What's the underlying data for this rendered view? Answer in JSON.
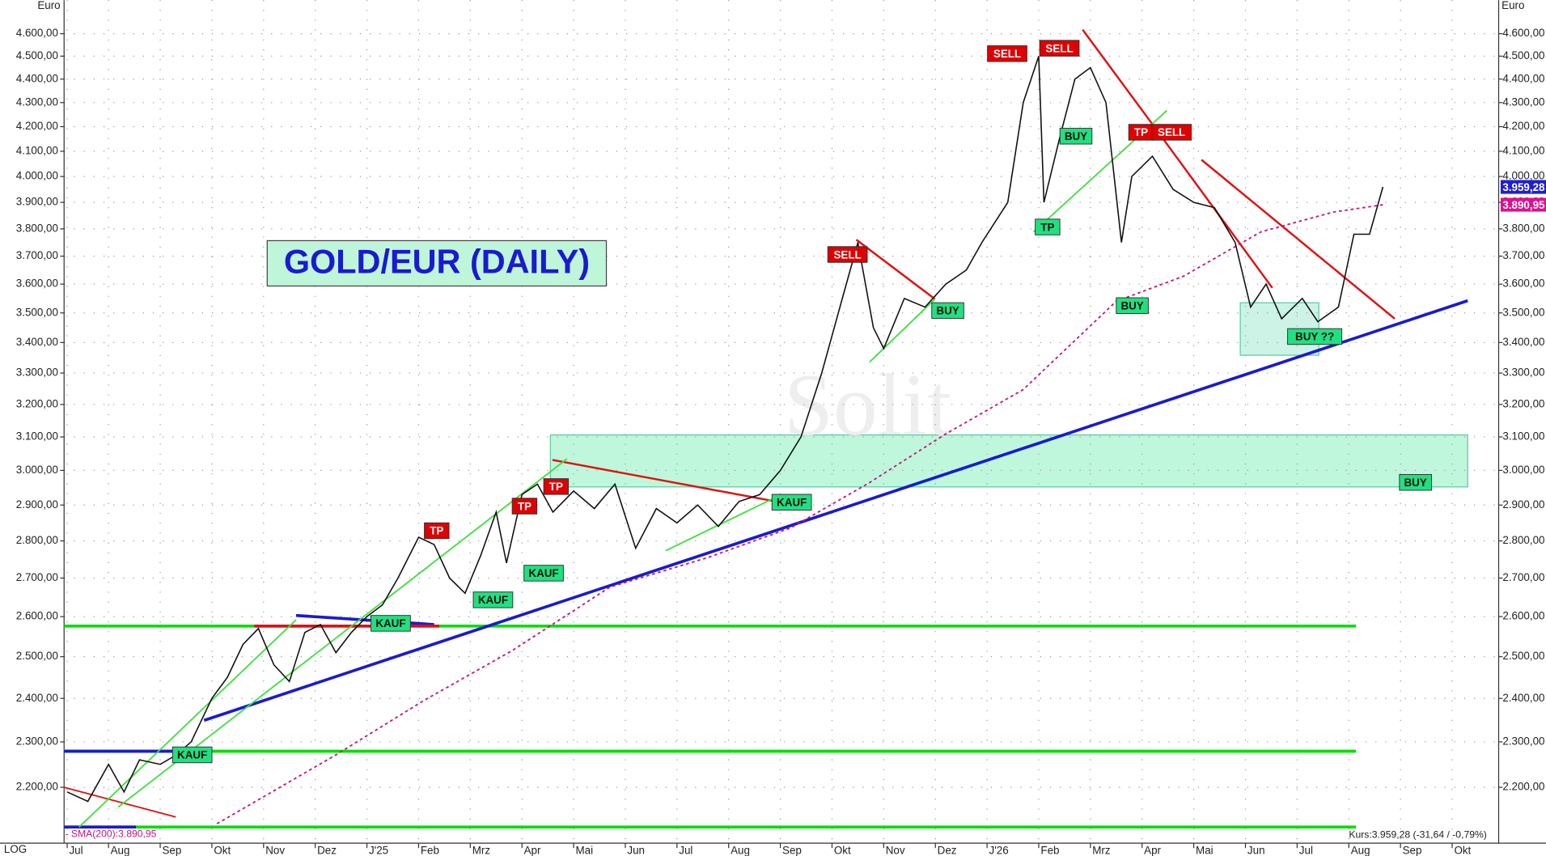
{
  "chart_data": {
    "type": "line",
    "title": "GOLD/EUR (DAILY)",
    "y_unit": "Euro",
    "scale_label": "LOG",
    "watermark": "Solit",
    "log_scale": true,
    "grid": true,
    "sma_legend": "- SMA(200):3.890,95",
    "status": "Kurs:3.959,28 (-31,64 / -0,79%)",
    "last_price": {
      "value": 3959.28,
      "label": "3.959,28",
      "color": "#1f1fd0"
    },
    "sma_last": {
      "value": 3890.95,
      "label": "3.890,95",
      "color": "#e0108c"
    },
    "xlim": [
      0.14,
      27.9
    ],
    "ylim": [
      2083,
      4754
    ],
    "xticks": [
      {
        "value": 0.2,
        "label": "Jul"
      },
      {
        "value": 1,
        "label": "Aug"
      },
      {
        "value": 2,
        "label": "Sep"
      },
      {
        "value": 3,
        "label": "Okt"
      },
      {
        "value": 4,
        "label": "Nov"
      },
      {
        "value": 5,
        "label": "Dez"
      },
      {
        "value": 6,
        "label": "J'25"
      },
      {
        "value": 7,
        "label": "Feb"
      },
      {
        "value": 8,
        "label": "Mrz"
      },
      {
        "value": 9,
        "label": "Apr"
      },
      {
        "value": 10,
        "label": "Mai"
      },
      {
        "value": 11,
        "label": "Jun"
      },
      {
        "value": 12,
        "label": "Jul"
      },
      {
        "value": 13,
        "label": "Aug"
      },
      {
        "value": 14,
        "label": "Sep"
      },
      {
        "value": 15,
        "label": "Okt"
      },
      {
        "value": 16,
        "label": "Nov"
      },
      {
        "value": 17,
        "label": "Dez"
      },
      {
        "value": 18,
        "label": "J'26"
      },
      {
        "value": 19,
        "label": "Feb"
      },
      {
        "value": 20,
        "label": "Mrz"
      },
      {
        "value": 21,
        "label": "Apr"
      },
      {
        "value": 22,
        "label": "Mai"
      },
      {
        "value": 23,
        "label": "Jun"
      },
      {
        "value": 24,
        "label": "Jul"
      },
      {
        "value": 25,
        "label": "Aug"
      },
      {
        "value": 26,
        "label": "Sep"
      },
      {
        "value": 27,
        "label": "Okt"
      }
    ],
    "yticks": [
      {
        "value": 2200,
        "label": "2.200,00"
      },
      {
        "value": 2300,
        "label": "2.300,00"
      },
      {
        "value": 2400,
        "label": "2.400,00"
      },
      {
        "value": 2500,
        "label": "2.500,00"
      },
      {
        "value": 2600,
        "label": "2.600,00"
      },
      {
        "value": 2700,
        "label": "2.700,00"
      },
      {
        "value": 2800,
        "label": "2.800,00"
      },
      {
        "value": 2900,
        "label": "2.900,00"
      },
      {
        "value": 3000,
        "label": "3.000,00"
      },
      {
        "value": 3100,
        "label": "3.100,00"
      },
      {
        "value": 3200,
        "label": "3.200,00"
      },
      {
        "value": 3300,
        "label": "3.300,00"
      },
      {
        "value": 3400,
        "label": "3.400,00"
      },
      {
        "value": 3500,
        "label": "3.500,00"
      },
      {
        "value": 3600,
        "label": "3.600,00"
      },
      {
        "value": 3700,
        "label": "3.700,00"
      },
      {
        "value": 3800,
        "label": "3.800,00"
      },
      {
        "value": 3900,
        "label": "3.900,00"
      },
      {
        "value": 4000,
        "label": "4.000,00"
      },
      {
        "value": 4100,
        "label": "4.100,00"
      },
      {
        "value": 4200,
        "label": "4.200,00"
      },
      {
        "value": 4300,
        "label": "4.300,00"
      },
      {
        "value": 4400,
        "label": "4.400,00"
      },
      {
        "value": 4500,
        "label": "4.500,00"
      },
      {
        "value": 4600,
        "label": "4.600,00"
      }
    ],
    "price": {
      "color": "#111111",
      "x": [
        0.2,
        0.6,
        1.0,
        1.3,
        1.6,
        2.0,
        2.3,
        2.6,
        3.0,
        3.3,
        3.6,
        3.9,
        4.2,
        4.5,
        4.8,
        5.1,
        5.4,
        5.7,
        6.0,
        6.3,
        6.6,
        7.0,
        7.3,
        7.6,
        7.9,
        8.2,
        8.5,
        8.7,
        9.0,
        9.3,
        9.6,
        10.0,
        10.4,
        10.8,
        11.2,
        11.6,
        12.0,
        12.4,
        12.8,
        13.2,
        13.6,
        14.0,
        14.4,
        14.8,
        15.2,
        15.5,
        15.8,
        16.0,
        16.4,
        16.8,
        17.2,
        17.6,
        17.9,
        18.4,
        18.7,
        19.0,
        19.1,
        19.4,
        19.7,
        20.0,
        20.3,
        20.6,
        20.8,
        21.2,
        21.6,
        22.0,
        22.4,
        22.8,
        23.1,
        23.4,
        23.7,
        24.1,
        24.4,
        24.8,
        25.1,
        25.4,
        25.66
      ],
      "values": [
        2190,
        2170,
        2250,
        2190,
        2260,
        2250,
        2270,
        2300,
        2400,
        2450,
        2530,
        2570,
        2480,
        2440,
        2560,
        2580,
        2510,
        2560,
        2600,
        2630,
        2700,
        2810,
        2790,
        2700,
        2660,
        2760,
        2880,
        2740,
        2930,
        2960,
        2880,
        2940,
        2890,
        2960,
        2780,
        2890,
        2850,
        2900,
        2840,
        2910,
        2930,
        3000,
        3100,
        3300,
        3550,
        3750,
        3450,
        3380,
        3550,
        3520,
        3600,
        3650,
        3750,
        3900,
        4300,
        4500,
        3900,
        4150,
        4400,
        4450,
        4300,
        3750,
        4000,
        4080,
        3950,
        3900,
        3880,
        3750,
        3520,
        3600,
        3480,
        3550,
        3470,
        3520,
        3780,
        3780,
        3959.28
      ]
    },
    "sma": {
      "color": "#c0187c",
      "x": [
        3.1,
        5.4,
        7.1,
        8.8,
        10.7,
        12.6,
        14.2,
        15.7,
        17.2,
        18.7,
        20.5,
        21.8,
        23.3,
        24.7,
        25.66
      ],
      "values": [
        2123,
        2271,
        2395,
        2514,
        2676,
        2755,
        2836,
        2962,
        3109,
        3247,
        3540,
        3628,
        3789,
        3863,
        3890.95
      ]
    },
    "zones": [
      {
        "x": [
          9.55,
          27.3
        ],
        "y": [
          2952,
          3106
        ],
        "color": "#bff7dc"
      },
      {
        "x": [
          22.9,
          24.42
        ],
        "y": [
          3358,
          3535
        ],
        "color": "#cdf3e6"
      }
    ],
    "trendlines": [
      {
        "color": "#00e000",
        "width": 3,
        "x": [
          0.14,
          25.14
        ],
        "y": [
          2576,
          2576
        ]
      },
      {
        "color": "#00e000",
        "width": 3,
        "x": [
          0.14,
          25.14
        ],
        "y": [
          2279,
          2279
        ]
      },
      {
        "color": "#00e000",
        "width": 3,
        "x": [
          0.14,
          25.14
        ],
        "y": [
          2116,
          2116
        ]
      },
      {
        "color": "#1a1ad0",
        "width": 3,
        "x": [
          2.85,
          27.3
        ],
        "y": [
          2349,
          3542
        ]
      },
      {
        "color": "#1a1ad0",
        "width": 3,
        "x": [
          0.14,
          2.3
        ],
        "y": [
          2279,
          2279
        ]
      },
      {
        "color": "#1a1ad0",
        "width": 3,
        "x": [
          4.63,
          7.3
        ],
        "y": [
          2603,
          2580
        ]
      },
      {
        "color": "#1a1ad0",
        "width": 3,
        "x": [
          0.14,
          1.53
        ],
        "y": [
          2116,
          2116
        ]
      },
      {
        "color": "#e01010",
        "width": 3,
        "x": [
          3.82,
          7.4
        ],
        "y": [
          2576,
          2576
        ]
      },
      {
        "color": "#e01010",
        "width": 1.5,
        "x": [
          0.14,
          2.3
        ],
        "y": [
          2200,
          2137
        ]
      },
      {
        "color": "#e01010",
        "width": 2,
        "x": [
          9.59,
          13.88
        ],
        "y": [
          3031,
          2911
        ]
      },
      {
        "color": "#e01010",
        "width": 2,
        "x": [
          15.47,
          16.99
        ],
        "y": [
          3760,
          3548
        ]
      },
      {
        "color": "#e01010",
        "width": 2,
        "x": [
          19.85,
          21.23
        ],
        "y": [
          4618,
          4201
        ]
      },
      {
        "color": "#e01010",
        "width": 2,
        "x": [
          21.23,
          23.52
        ],
        "y": [
          4201,
          3587
        ]
      },
      {
        "color": "#e01010",
        "width": 2,
        "x": [
          22.15,
          25.89
        ],
        "y": [
          4066,
          3480
        ]
      },
      {
        "color": "#40e040",
        "width": 1.5,
        "x": [
          0.43,
          4.63
        ],
        "y": [
          2116,
          2592
        ]
      },
      {
        "color": "#40e040",
        "width": 1.5,
        "x": [
          1.19,
          9.87
        ],
        "y": [
          2158,
          3034
        ]
      },
      {
        "color": "#40e040",
        "width": 1.5,
        "x": [
          11.78,
          13.88
        ],
        "y": [
          2773,
          2920
        ]
      },
      {
        "color": "#40e040",
        "width": 1.5,
        "x": [
          15.73,
          16.99
        ],
        "y": [
          3336,
          3548
        ]
      },
      {
        "color": "#40e040",
        "width": 1.5,
        "x": [
          18.9,
          21.48
        ],
        "y": [
          3789,
          4267
        ]
      }
    ],
    "signals": [
      {
        "text": "SELL",
        "x": 15.3,
        "y": 3706,
        "color": "#e00000"
      },
      {
        "text": "SELL",
        "x": 18.39,
        "y": 4511,
        "color": "#e00000"
      },
      {
        "text": "SELL",
        "x": 19.4,
        "y": 4535,
        "color": "#e00000"
      },
      {
        "text": "TP",
        "x": 20.98,
        "y": 4177,
        "color": "#e00000"
      },
      {
        "text": "SELL",
        "x": 21.57,
        "y": 4177,
        "color": "#e00000"
      },
      {
        "text": "TP",
        "x": 7.35,
        "y": 2828,
        "color": "#e00000"
      },
      {
        "text": "TP",
        "x": 9.05,
        "y": 2897,
        "color": "#e00000"
      },
      {
        "text": "TP",
        "x": 9.66,
        "y": 2953,
        "color": "#e00000"
      },
      {
        "text": "KAUF",
        "x": 2.62,
        "y": 2271,
        "color": "#20e080"
      },
      {
        "text": "KAUF",
        "x": 6.46,
        "y": 2583,
        "color": "#20e080"
      },
      {
        "text": "KAUF",
        "x": 8.44,
        "y": 2643,
        "color": "#20e080"
      },
      {
        "text": "KAUF",
        "x": 9.42,
        "y": 2713,
        "color": "#20e080"
      },
      {
        "text": "KAUF",
        "x": 14.22,
        "y": 2908,
        "color": "#20e080"
      },
      {
        "text": "BUY",
        "x": 17.24,
        "y": 3508,
        "color": "#20e080"
      },
      {
        "text": "BUY",
        "x": 19.72,
        "y": 4161,
        "color": "#20e080"
      },
      {
        "text": "TP",
        "x": 19.17,
        "y": 3807,
        "color": "#20e080"
      },
      {
        "text": "BUY",
        "x": 20.81,
        "y": 3525,
        "color": "#20e080"
      },
      {
        "text": "BUY ??",
        "x": 24.34,
        "y": 3420,
        "color": "#20e080"
      },
      {
        "text": "BUY",
        "x": 26.29,
        "y": 2965,
        "color": "#20e080"
      }
    ]
  }
}
